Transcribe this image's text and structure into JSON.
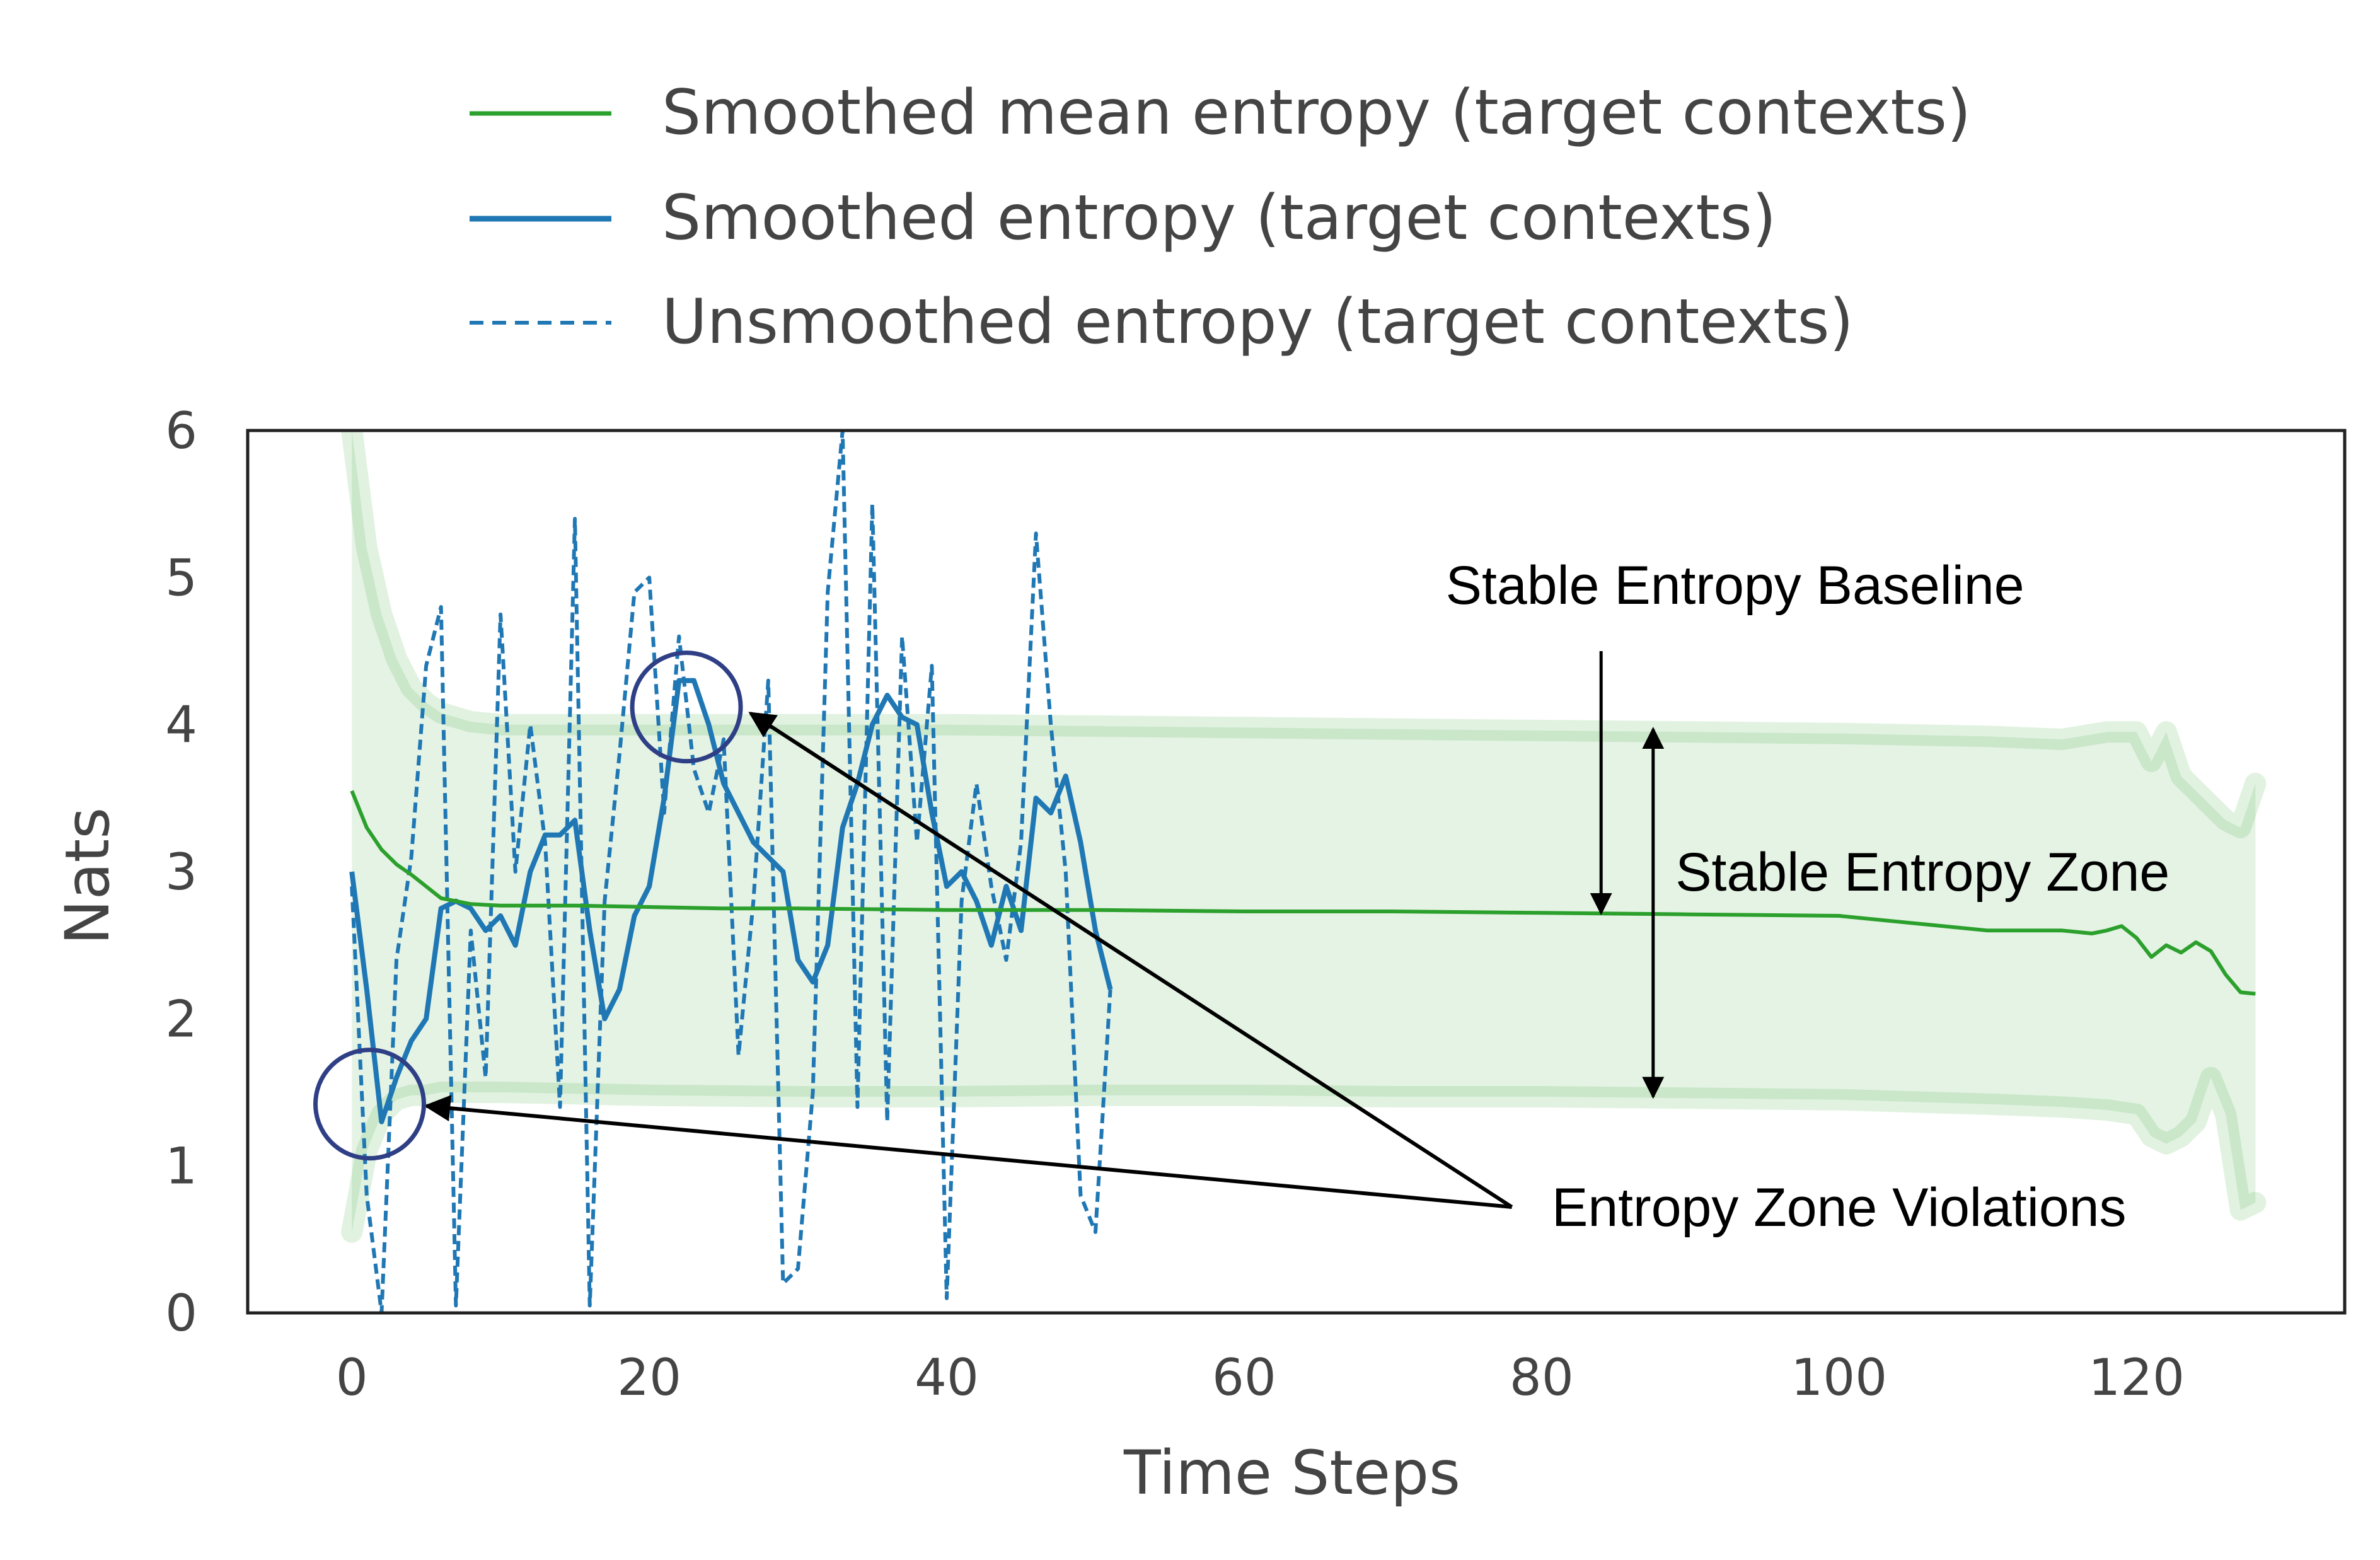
{
  "colors": {
    "mean": "#2ca02c",
    "band": "#2ca02c",
    "smoothed": "#1f77b4",
    "unsmoothed": "#1f77b4",
    "circle": "#2f3f86",
    "arrow": "#000000",
    "axis": "#222222"
  },
  "chart_data": {
    "type": "line",
    "xlabel": "Time Steps",
    "ylabel": "Nats",
    "xlim": [
      -7,
      134
    ],
    "ylim": [
      0,
      6
    ],
    "xticks": [
      0,
      20,
      40,
      60,
      80,
      100,
      120
    ],
    "yticks": [
      0,
      1,
      2,
      3,
      4,
      5,
      6
    ],
    "legend_position": "top",
    "series": [
      {
        "name": "Smoothed mean entropy (target contexts)",
        "style": "solid",
        "color": "#2ca02c",
        "x": [
          0,
          1,
          2,
          3,
          4,
          5,
          6,
          8,
          10,
          15,
          20,
          25,
          30,
          40,
          50,
          60,
          70,
          80,
          90,
          100,
          105,
          110,
          115,
          117,
          118,
          119,
          120,
          121,
          122,
          123,
          124,
          125,
          126,
          127,
          128
        ],
        "y": [
          3.55,
          3.3,
          3.15,
          3.05,
          2.98,
          2.9,
          2.82,
          2.78,
          2.77,
          2.77,
          2.76,
          2.75,
          2.75,
          2.74,
          2.74,
          2.73,
          2.73,
          2.72,
          2.71,
          2.7,
          2.65,
          2.6,
          2.6,
          2.58,
          2.6,
          2.63,
          2.55,
          2.42,
          2.5,
          2.45,
          2.52,
          2.46,
          2.3,
          2.18,
          2.17
        ]
      },
      {
        "name": "Smoothed entropy (target contexts)",
        "style": "solid",
        "color": "#1f77b4",
        "x": [
          0,
          1,
          2,
          3,
          4,
          5,
          6,
          7,
          8,
          9,
          10,
          11,
          12,
          13,
          14,
          15,
          16,
          17,
          18,
          19,
          20,
          21,
          22,
          23,
          24,
          25,
          26,
          27,
          28,
          29,
          30,
          31,
          32,
          33,
          34,
          35,
          36,
          37,
          38,
          39,
          40,
          41,
          42,
          43,
          44,
          45,
          46,
          47,
          48,
          49,
          50,
          51
        ],
        "y": [
          3.0,
          2.2,
          1.3,
          1.6,
          1.85,
          2.0,
          2.75,
          2.8,
          2.75,
          2.6,
          2.7,
          2.5,
          3.0,
          3.25,
          3.25,
          3.35,
          2.6,
          2.0,
          2.2,
          2.7,
          2.9,
          3.5,
          4.3,
          4.3,
          4.0,
          3.6,
          3.4,
          3.2,
          3.1,
          3.0,
          2.4,
          2.25,
          2.5,
          3.3,
          3.6,
          4.0,
          4.2,
          4.05,
          4.0,
          3.4,
          2.9,
          3.0,
          2.8,
          2.5,
          2.9,
          2.6,
          3.5,
          3.4,
          3.65,
          3.2,
          2.6,
          2.2
        ]
      },
      {
        "name": "Unsmoothed entropy (target contexts)",
        "style": "dashed",
        "color": "#1f77b4",
        "x": [
          0,
          1,
          2,
          3,
          4,
          5,
          6,
          7,
          8,
          9,
          10,
          11,
          12,
          13,
          14,
          15,
          16,
          17,
          18,
          19,
          20,
          21,
          22,
          23,
          24,
          25,
          26,
          27,
          28,
          29,
          30,
          31,
          32,
          33,
          34,
          35,
          36,
          37,
          38,
          39,
          40,
          41,
          42,
          43,
          44,
          45,
          46,
          47,
          48,
          49,
          50,
          51
        ],
        "y": [
          2.9,
          0.8,
          0.0,
          2.4,
          3.1,
          4.4,
          4.8,
          0.05,
          2.6,
          1.6,
          4.75,
          3.0,
          4.0,
          3.2,
          1.4,
          5.4,
          0.05,
          2.8,
          3.8,
          4.9,
          5.0,
          3.4,
          4.6,
          3.7,
          3.4,
          3.9,
          1.75,
          2.8,
          4.3,
          0.2,
          0.3,
          1.5,
          4.9,
          6.0,
          1.4,
          5.5,
          1.3,
          4.6,
          3.2,
          4.4,
          0.1,
          2.8,
          3.6,
          2.9,
          2.4,
          3.2,
          5.3,
          4.0,
          3.0,
          0.8,
          0.55,
          2.2
        ]
      },
      {
        "name": "Stable Entropy Zone",
        "type": "area",
        "color": "#2ca02c",
        "x": [
          0,
          1,
          2,
          3,
          4,
          5,
          6,
          8,
          10,
          20,
          30,
          40,
          50,
          60,
          70,
          80,
          90,
          100,
          110,
          115,
          118,
          120,
          121,
          122,
          123,
          124,
          125,
          126,
          127,
          128
        ],
        "upper": [
          6.0,
          5.2,
          4.75,
          4.45,
          4.25,
          4.15,
          4.08,
          4.02,
          4.0,
          4.0,
          4.0,
          4.0,
          3.99,
          3.98,
          3.97,
          3.96,
          3.95,
          3.94,
          3.92,
          3.9,
          3.95,
          3.95,
          3.75,
          3.95,
          3.65,
          3.55,
          3.45,
          3.35,
          3.3,
          3.6
        ],
        "lower": [
          0.55,
          1.1,
          1.35,
          1.45,
          1.48,
          1.48,
          1.5,
          1.5,
          1.5,
          1.48,
          1.47,
          1.47,
          1.48,
          1.48,
          1.47,
          1.47,
          1.46,
          1.45,
          1.42,
          1.4,
          1.38,
          1.35,
          1.2,
          1.15,
          1.2,
          1.3,
          1.6,
          1.35,
          0.7,
          0.75
        ]
      }
    ],
    "annotations": [
      {
        "text": "Stable Entropy Baseline",
        "text_x": 93,
        "text_y": 4.95,
        "type": "arrow-down",
        "x": 84,
        "y_from": 4.5,
        "y_to": 2.72
      },
      {
        "text": "Stable Entropy Zone",
        "text_x": 89,
        "text_y": 3.0,
        "type": "double-arrow",
        "x": 87.5,
        "y_from": 3.97,
        "y_to": 1.47
      },
      {
        "text": "Entropy Zone Violations",
        "text_x": 100,
        "text_y": 0.72,
        "type": "arrows",
        "targets": [
          [
            1.2,
            1.45
          ],
          [
            23,
            4.12
          ]
        ],
        "origin": [
          78,
          0.72
        ]
      }
    ],
    "highlight_circles": [
      {
        "x": 1.2,
        "y": 1.42
      },
      {
        "x": 22.5,
        "y": 4.12
      }
    ]
  }
}
